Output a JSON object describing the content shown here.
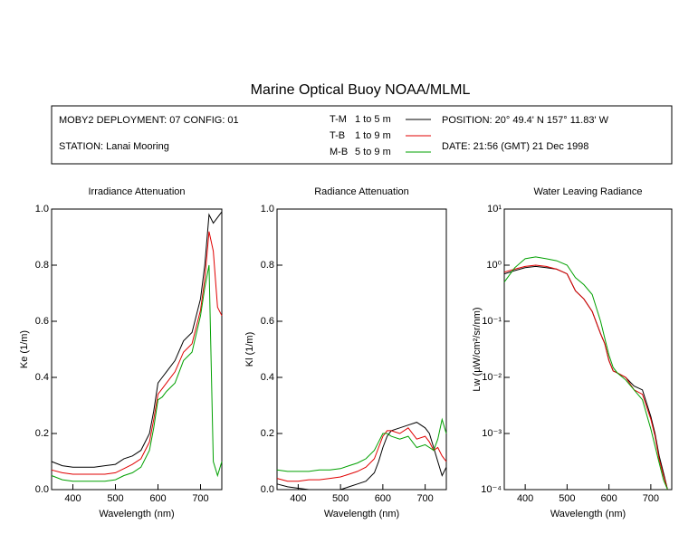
{
  "title": "Marine Optical Buoy NOAA/MLML",
  "info": {
    "deployment": "MOBY2 DEPLOYMENT: 07 CONFIG: 01",
    "station": "STATION: Lanai Mooring",
    "position": "POSITION: 20° 49.4' N   157° 11.83' W",
    "date": "DATE: 21:56 (GMT) 21 Dec 1998"
  },
  "legend": [
    {
      "name": "T-M",
      "label": "1 to 5  m",
      "color": "#000000"
    },
    {
      "name": "T-B",
      "label": "1 to 9  m",
      "color": "#e00000"
    },
    {
      "name": "M-B",
      "label": "5 to 9  m",
      "color": "#00a000"
    }
  ],
  "chart_data": [
    {
      "type": "line",
      "title": "Irradiance Attenuation",
      "x_label": "Wavelength (nm)",
      "y_label": "Ke  (1/m)",
      "x": [
        350,
        375,
        400,
        425,
        450,
        475,
        500,
        520,
        540,
        560,
        580,
        590,
        600,
        610,
        620,
        640,
        660,
        680,
        700,
        710,
        720,
        730,
        740,
        750
      ],
      "xlim": [
        350,
        750
      ],
      "xticks": [
        400,
        500,
        600,
        700
      ],
      "ylim": [
        0,
        1
      ],
      "yticks": [
        {
          "value": 0,
          "label": "0.0"
        },
        0.2,
        0.4,
        0.6,
        0.8,
        {
          "value": 1,
          "label": "1.0"
        }
      ],
      "series": [
        {
          "color": "#000000",
          "values": [
            0.1,
            0.085,
            0.08,
            0.08,
            0.08,
            0.085,
            0.09,
            0.11,
            0.12,
            0.14,
            0.2,
            0.28,
            0.38,
            0.4,
            0.42,
            0.46,
            0.53,
            0.56,
            0.68,
            0.8,
            0.98,
            0.95,
            0.97,
            0.99
          ]
        },
        {
          "color": "#e00000",
          "values": [
            0.07,
            0.06,
            0.055,
            0.055,
            0.055,
            0.055,
            0.06,
            0.075,
            0.09,
            0.11,
            0.17,
            0.25,
            0.34,
            0.36,
            0.38,
            0.42,
            0.49,
            0.52,
            0.64,
            0.75,
            0.92,
            0.85,
            0.65,
            0.62
          ]
        },
        {
          "color": "#00a000",
          "values": [
            0.05,
            0.035,
            0.03,
            0.03,
            0.03,
            0.03,
            0.035,
            0.05,
            0.06,
            0.08,
            0.14,
            0.22,
            0.32,
            0.33,
            0.35,
            0.38,
            0.46,
            0.49,
            0.62,
            0.72,
            0.8,
            0.1,
            0.05,
            0.1
          ]
        }
      ]
    },
    {
      "type": "line",
      "title": "Radiance Attenuation",
      "x_label": "Wavelength (nm)",
      "y_label": "Kl  (1/m)",
      "x": [
        350,
        375,
        400,
        425,
        450,
        475,
        500,
        520,
        540,
        560,
        580,
        590,
        600,
        610,
        620,
        640,
        660,
        680,
        700,
        710,
        720,
        730,
        740,
        750
      ],
      "xlim": [
        350,
        750
      ],
      "xticks": [
        400,
        500,
        600,
        700
      ],
      "ylim": [
        0,
        1
      ],
      "yticks": [
        {
          "value": 0,
          "label": "0.0"
        },
        0.2,
        0.4,
        0.6,
        0.8,
        {
          "value": 1,
          "label": "1.0"
        }
      ],
      "series": [
        {
          "color": "#000000",
          "values": [
            0.02,
            0.01,
            0.005,
            0,
            0,
            0,
            0,
            0.01,
            0.02,
            0.03,
            0.06,
            0.1,
            0.15,
            0.19,
            0.21,
            0.22,
            0.23,
            0.24,
            0.22,
            0.2,
            0.15,
            0.1,
            0.05,
            0.08
          ]
        },
        {
          "color": "#e00000",
          "values": [
            0.04,
            0.03,
            0.03,
            0.035,
            0.035,
            0.04,
            0.045,
            0.055,
            0.065,
            0.08,
            0.11,
            0.15,
            0.19,
            0.21,
            0.21,
            0.2,
            0.22,
            0.18,
            0.19,
            0.17,
            0.14,
            0.15,
            0.12,
            0.1
          ]
        },
        {
          "color": "#00a000",
          "values": [
            0.07,
            0.065,
            0.065,
            0.065,
            0.07,
            0.07,
            0.075,
            0.085,
            0.095,
            0.11,
            0.14,
            0.17,
            0.2,
            0.2,
            0.19,
            0.18,
            0.19,
            0.15,
            0.16,
            0.15,
            0.14,
            0.18,
            0.25,
            0.2
          ]
        }
      ]
    },
    {
      "type": "line",
      "title": "Water Leaving Radiance",
      "x_label": "Wavelength (nm)",
      "y_label": "Lw  (µW/cm²/sr/nm)",
      "log_y": true,
      "x": [
        350,
        375,
        400,
        425,
        450,
        475,
        500,
        520,
        540,
        560,
        580,
        590,
        600,
        610,
        620,
        640,
        660,
        680,
        700,
        710,
        720,
        730,
        740,
        750
      ],
      "xlim": [
        350,
        750
      ],
      "xticks": [
        400,
        500,
        600,
        700
      ],
      "ylim": [
        0.0001,
        10
      ],
      "yticks": [
        {
          "value": 0.0001,
          "label": "10⁻⁴"
        },
        {
          "value": 0.001,
          "label": "10⁻³"
        },
        {
          "value": 0.01,
          "label": "10⁻²"
        },
        {
          "value": 0.1,
          "label": "10⁻¹"
        },
        {
          "value": 1,
          "label": "10⁰"
        },
        {
          "value": 10,
          "label": "10¹"
        }
      ],
      "series": [
        {
          "color": "#000000",
          "values": [
            0.7,
            0.8,
            0.9,
            0.95,
            0.9,
            0.85,
            0.7,
            0.35,
            0.25,
            0.15,
            0.06,
            0.04,
            0.02,
            0.013,
            0.012,
            0.01,
            0.007,
            0.006,
            0.002,
            0.001,
            0.0004,
            0.0002,
            0.0001,
            null
          ]
        },
        {
          "color": "#e00000",
          "values": [
            0.75,
            0.85,
            0.95,
            1.0,
            0.95,
            0.85,
            0.7,
            0.35,
            0.25,
            0.15,
            0.06,
            0.04,
            0.02,
            0.013,
            0.012,
            0.01,
            0.006,
            0.005,
            0.0018,
            0.0009,
            0.00035,
            0.00018,
            0.0001,
            null
          ]
        },
        {
          "color": "#00a000",
          "values": [
            0.5,
            0.9,
            1.3,
            1.4,
            1.3,
            1.2,
            1.0,
            0.6,
            0.45,
            0.3,
            0.1,
            0.05,
            0.025,
            0.015,
            0.012,
            0.009,
            0.006,
            0.004,
            0.0012,
            0.0006,
            0.0003,
            0.00015,
            0.0001,
            null
          ]
        }
      ]
    }
  ]
}
